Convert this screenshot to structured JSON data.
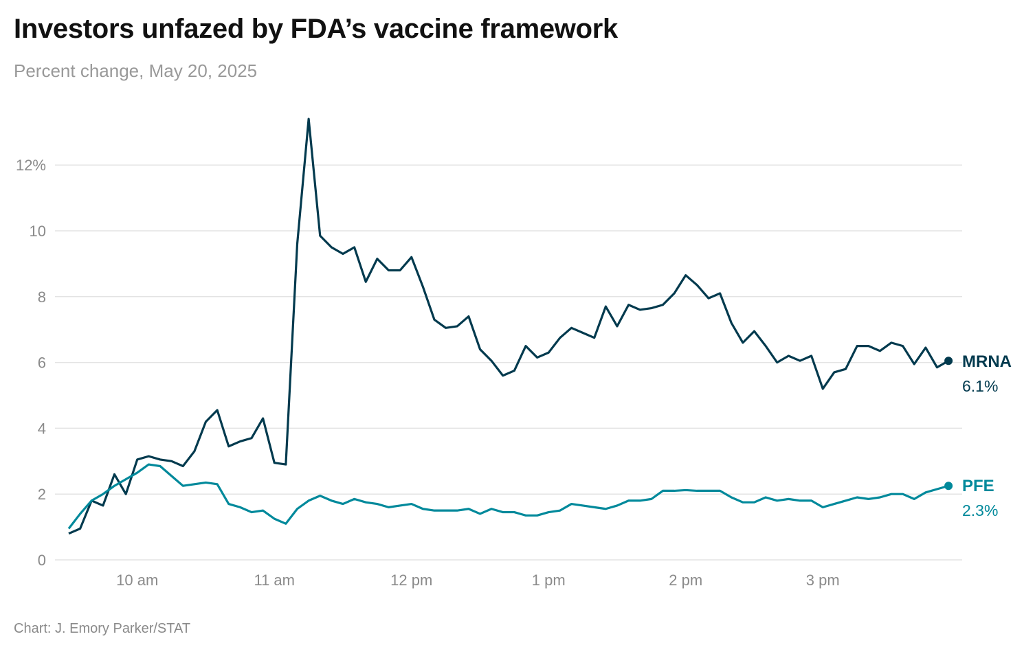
{
  "title": "Investors unfazed by FDA’s vaccine framework",
  "subtitle": "Percent change, May 20, 2025",
  "source": "Chart: J. Emory Parker/STAT",
  "chart_data": {
    "type": "line",
    "title": "Investors unfazed by FDA’s vaccine framework",
    "subtitle": "Percent change, May 20, 2025",
    "xlabel": "",
    "ylabel": "",
    "ylim": [
      0,
      13.5
    ],
    "y_ticks": [
      0,
      2,
      4,
      6,
      8,
      10,
      12
    ],
    "y_tick_labels": [
      "0",
      "2",
      "4",
      "6",
      "8",
      "10",
      "12%"
    ],
    "x_ticks": [
      "10:00",
      "11:00",
      "12:00",
      "13:00",
      "14:00",
      "15:00"
    ],
    "x_tick_labels": [
      "10 am",
      "11 am",
      "12 pm",
      "1 pm",
      "2 pm",
      "3 pm"
    ],
    "grid": true,
    "legend": "end-of-line labels",
    "x": [
      "09:30",
      "09:35",
      "09:40",
      "09:45",
      "09:50",
      "09:55",
      "10:00",
      "10:05",
      "10:10",
      "10:15",
      "10:20",
      "10:25",
      "10:30",
      "10:35",
      "10:40",
      "10:45",
      "10:50",
      "10:55",
      "11:00",
      "11:05",
      "11:10",
      "11:15",
      "11:20",
      "11:25",
      "11:30",
      "11:35",
      "11:40",
      "11:45",
      "11:50",
      "11:55",
      "12:00",
      "12:05",
      "12:10",
      "12:15",
      "12:20",
      "12:25",
      "12:30",
      "12:35",
      "12:40",
      "12:45",
      "12:50",
      "12:55",
      "13:00",
      "13:05",
      "13:10",
      "13:15",
      "13:20",
      "13:25",
      "13:30",
      "13:35",
      "13:40",
      "13:45",
      "13:50",
      "13:55",
      "14:00",
      "14:05",
      "14:10",
      "14:15",
      "14:20",
      "14:25",
      "14:30",
      "14:35",
      "14:40",
      "14:45",
      "14:50",
      "14:55",
      "15:00",
      "15:05",
      "15:10",
      "15:15",
      "15:20",
      "15:25",
      "15:30",
      "15:35",
      "15:40",
      "15:45",
      "15:50",
      "15:55"
    ],
    "series": [
      {
        "name": "MRNA",
        "end_label": "6.1%",
        "color": "#023a4e",
        "values": [
          0.8,
          0.95,
          1.8,
          1.65,
          2.6,
          2.0,
          3.05,
          3.15,
          3.05,
          3.0,
          2.85,
          3.3,
          4.2,
          4.55,
          3.45,
          3.6,
          3.7,
          4.3,
          2.95,
          2.9,
          9.6,
          13.4,
          9.85,
          9.5,
          9.3,
          9.5,
          8.45,
          9.15,
          8.8,
          8.8,
          9.2,
          8.3,
          7.3,
          7.05,
          7.1,
          7.4,
          6.4,
          6.05,
          5.6,
          5.75,
          6.5,
          6.15,
          6.3,
          6.75,
          7.05,
          6.9,
          6.75,
          7.7,
          7.1,
          7.75,
          7.6,
          7.65,
          7.75,
          8.1,
          8.65,
          8.35,
          7.95,
          8.1,
          7.2,
          6.6,
          6.95,
          6.5,
          6.0,
          6.2,
          6.05,
          6.2,
          5.2,
          5.7,
          5.8,
          6.5,
          6.5,
          6.35,
          6.6,
          6.5,
          5.95,
          6.45,
          5.85,
          6.05
        ]
      },
      {
        "name": "PFE",
        "end_label": "2.3%",
        "color": "#00899b",
        "values": [
          0.95,
          1.4,
          1.8,
          2.0,
          2.25,
          2.45,
          2.65,
          2.9,
          2.85,
          2.55,
          2.25,
          2.3,
          2.35,
          2.3,
          1.7,
          1.6,
          1.45,
          1.5,
          1.25,
          1.1,
          1.55,
          1.8,
          1.95,
          1.8,
          1.7,
          1.85,
          1.75,
          1.7,
          1.6,
          1.65,
          1.7,
          1.55,
          1.5,
          1.5,
          1.5,
          1.55,
          1.4,
          1.55,
          1.45,
          1.45,
          1.35,
          1.35,
          1.45,
          1.5,
          1.7,
          1.65,
          1.6,
          1.55,
          1.65,
          1.8,
          1.8,
          1.85,
          2.1,
          2.1,
          2.12,
          2.1,
          2.1,
          2.1,
          1.9,
          1.75,
          1.75,
          1.9,
          1.8,
          1.85,
          1.8,
          1.8,
          1.6,
          1.7,
          1.8,
          1.9,
          1.85,
          1.9,
          2.0,
          2.0,
          1.85,
          2.05,
          2.15,
          2.25
        ]
      }
    ]
  }
}
